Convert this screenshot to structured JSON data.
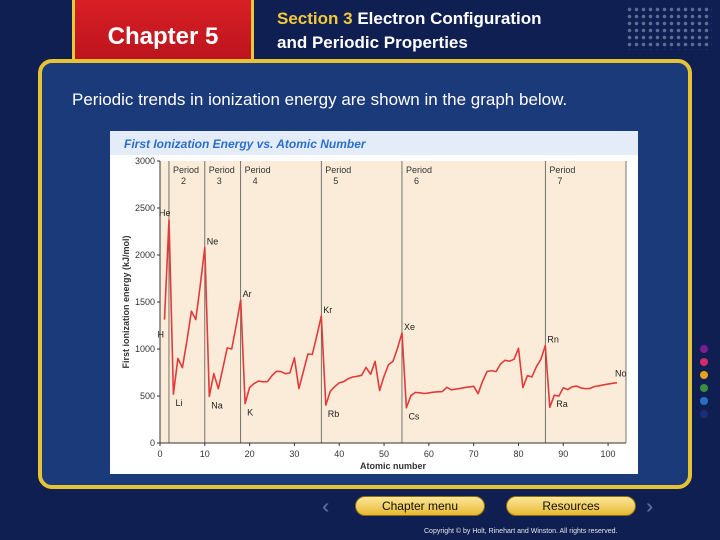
{
  "header": {
    "chapter": "Chapter 5",
    "section_num": "Section 3",
    "section_line1": "Electron Configuration",
    "section_line2": "and Periodic Properties"
  },
  "intro": "Periodic trends in ionization energy are shown in the graph below.",
  "nav": {
    "chapter_menu": "Chapter menu",
    "resources": "Resources"
  },
  "copyright": "Copyright © by Holt, Rinehart and Winston. All rights reserved.",
  "colors": {
    "tab_red": "#d91f26",
    "border_gold": "#e6c334",
    "line_red": "#e23b3b",
    "title_blue": "#2b6fcb"
  },
  "chart_data": {
    "type": "line",
    "title": "First Ionization Energy vs. Atomic Number",
    "xlabel": "Atomic number",
    "ylabel": "First ionization energy (kJ/mol)",
    "xlim": [
      0,
      104
    ],
    "ylim": [
      0,
      3000
    ],
    "xticks": [
      0,
      10,
      20,
      30,
      40,
      50,
      60,
      70,
      80,
      90,
      100
    ],
    "yticks": [
      0,
      500,
      1000,
      1500,
      2000,
      2500,
      3000
    ],
    "periods": [
      {
        "label_top": "Period",
        "label_bottom": "2",
        "start": 2,
        "end": 10
      },
      {
        "label_top": "Period",
        "label_bottom": "3",
        "start": 10,
        "end": 18
      },
      {
        "label_top": "Period",
        "label_bottom": "4",
        "start": 18,
        "end": 36
      },
      {
        "label_top": "Period",
        "label_bottom": "5",
        "start": 36,
        "end": 54
      },
      {
        "label_top": "Period",
        "label_bottom": "6",
        "start": 54,
        "end": 86
      },
      {
        "label_top": "Period",
        "label_bottom": "7",
        "start": 86,
        "end": 104
      }
    ],
    "points": [
      [
        1,
        1312
      ],
      [
        2,
        2372
      ],
      [
        3,
        520
      ],
      [
        4,
        900
      ],
      [
        5,
        801
      ],
      [
        6,
        1086
      ],
      [
        7,
        1402
      ],
      [
        8,
        1314
      ],
      [
        9,
        1681
      ],
      [
        10,
        2081
      ],
      [
        11,
        496
      ],
      [
        12,
        738
      ],
      [
        13,
        578
      ],
      [
        14,
        787
      ],
      [
        15,
        1012
      ],
      [
        16,
        1000
      ],
      [
        17,
        1251
      ],
      [
        18,
        1521
      ],
      [
        19,
        419
      ],
      [
        20,
        590
      ],
      [
        21,
        633
      ],
      [
        22,
        659
      ],
      [
        23,
        651
      ],
      [
        24,
        653
      ],
      [
        25,
        717
      ],
      [
        26,
        763
      ],
      [
        27,
        760
      ],
      [
        28,
        737
      ],
      [
        29,
        746
      ],
      [
        30,
        906
      ],
      [
        31,
        579
      ],
      [
        32,
        762
      ],
      [
        33,
        947
      ],
      [
        34,
        941
      ],
      [
        35,
        1140
      ],
      [
        36,
        1351
      ],
      [
        37,
        403
      ],
      [
        38,
        550
      ],
      [
        39,
        600
      ],
      [
        40,
        640
      ],
      [
        41,
        652
      ],
      [
        42,
        684
      ],
      [
        43,
        702
      ],
      [
        44,
        710
      ],
      [
        45,
        720
      ],
      [
        46,
        804
      ],
      [
        47,
        731
      ],
      [
        48,
        868
      ],
      [
        49,
        558
      ],
      [
        50,
        709
      ],
      [
        51,
        834
      ],
      [
        52,
        869
      ],
      [
        53,
        1008
      ],
      [
        54,
        1170
      ],
      [
        55,
        376
      ],
      [
        56,
        503
      ],
      [
        57,
        538
      ],
      [
        58,
        534
      ],
      [
        59,
        527
      ],
      [
        60,
        533
      ],
      [
        61,
        540
      ],
      [
        62,
        545
      ],
      [
        63,
        547
      ],
      [
        64,
        593
      ],
      [
        65,
        566
      ],
      [
        66,
        573
      ],
      [
        67,
        581
      ],
      [
        68,
        589
      ],
      [
        69,
        597
      ],
      [
        70,
        603
      ],
      [
        71,
        524
      ],
      [
        72,
        659
      ],
      [
        73,
        761
      ],
      [
        74,
        770
      ],
      [
        75,
        760
      ],
      [
        76,
        840
      ],
      [
        77,
        880
      ],
      [
        78,
        870
      ],
      [
        79,
        890
      ],
      [
        80,
        1007
      ],
      [
        81,
        589
      ],
      [
        82,
        716
      ],
      [
        83,
        703
      ],
      [
        84,
        812
      ],
      [
        85,
        890
      ],
      [
        86,
        1037
      ],
      [
        87,
        380
      ],
      [
        88,
        509
      ],
      [
        89,
        499
      ],
      [
        90,
        587
      ],
      [
        91,
        568
      ],
      [
        92,
        598
      ],
      [
        93,
        605
      ],
      [
        94,
        585
      ],
      [
        95,
        578
      ],
      [
        96,
        581
      ],
      [
        97,
        601
      ],
      [
        98,
        608
      ],
      [
        99,
        619
      ],
      [
        100,
        627
      ],
      [
        101,
        635
      ],
      [
        102,
        642
      ]
    ],
    "labels": [
      {
        "text": "He",
        "x": 2,
        "y": 2372
      },
      {
        "text": "H",
        "x": 1,
        "y": 1312
      },
      {
        "text": "Li",
        "x": 3,
        "y": 520
      },
      {
        "text": "Ne",
        "x": 10,
        "y": 2081
      },
      {
        "text": "Na",
        "x": 11,
        "y": 496
      },
      {
        "text": "Ar",
        "x": 18,
        "y": 1521
      },
      {
        "text": "K",
        "x": 19,
        "y": 419
      },
      {
        "text": "Kr",
        "x": 36,
        "y": 1351
      },
      {
        "text": "Rb",
        "x": 37,
        "y": 403
      },
      {
        "text": "Xe",
        "x": 54,
        "y": 1170
      },
      {
        "text": "Cs",
        "x": 55,
        "y": 376
      },
      {
        "text": "Rn",
        "x": 86,
        "y": 1037
      },
      {
        "text": "Ra",
        "x": 88,
        "y": 509
      },
      {
        "text": "No",
        "x": 102,
        "y": 642
      }
    ]
  }
}
